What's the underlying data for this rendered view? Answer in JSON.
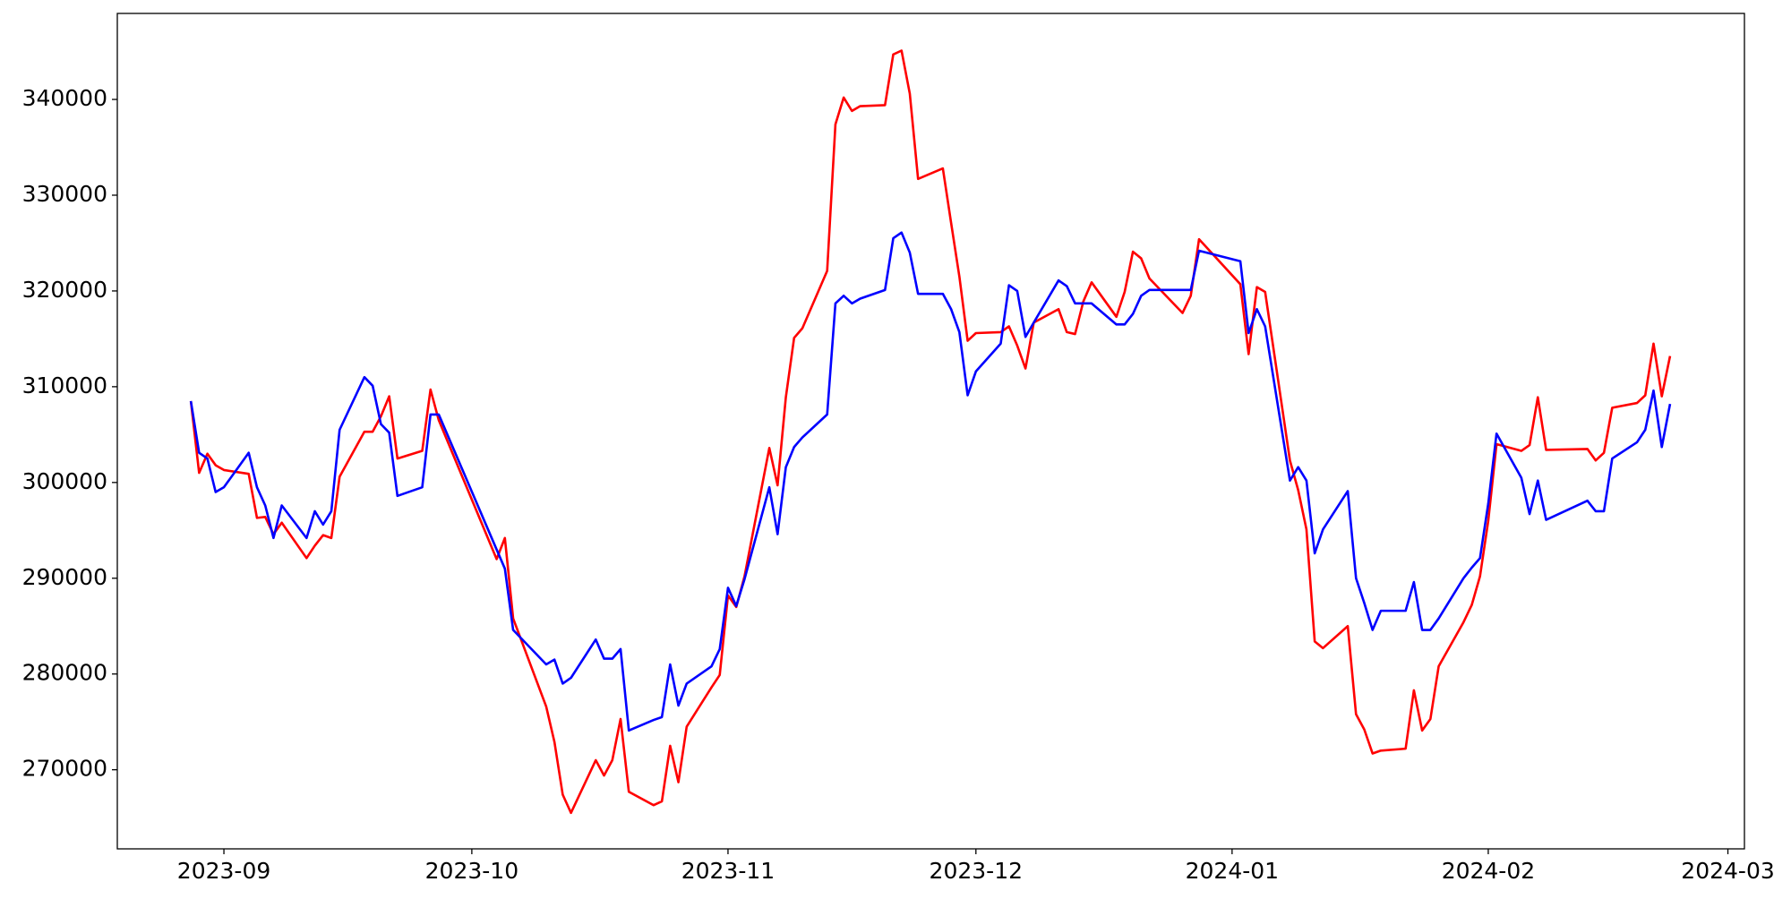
{
  "chart_data": {
    "type": "line",
    "x": [
      19597,
      19598,
      19599,
      19600,
      19601,
      19604,
      19605,
      19606,
      19607,
      19608,
      19611,
      19612,
      19613,
      19614,
      19615,
      19618,
      19619,
      19620,
      19621,
      19622,
      19625,
      19626,
      19627,
      19634,
      19635,
      19636,
      19640,
      19641,
      19642,
      19643,
      19646,
      19647,
      19648,
      19649,
      19650,
      19653,
      19654,
      19655,
      19656,
      19657,
      19660,
      19661,
      19662,
      19663,
      19664,
      19667,
      19668,
      19669,
      19670,
      19671,
      19674,
      19675,
      19676,
      19677,
      19678,
      19681,
      19682,
      19683,
      19684,
      19685,
      19688,
      19689,
      19690,
      19691,
      19692,
      19695,
      19696,
      19697,
      19698,
      19699,
      19702,
      19703,
      19704,
      19705,
      19706,
      19709,
      19710,
      19711,
      19712,
      19713,
      19717,
      19718,
      19719,
      19724,
      19725,
      19726,
      19727,
      19730,
      19731,
      19732,
      19733,
      19734,
      19737,
      19738,
      19739,
      19740,
      19741,
      19744,
      19745,
      19746,
      19747,
      19748,
      19751,
      19752,
      19753,
      19754,
      19755,
      19758,
      19759,
      19760,
      19761,
      19766,
      19767,
      19768,
      19769,
      19772,
      19773,
      19774,
      19775,
      19776
    ],
    "series": [
      {
        "color": "red",
        "values": [
          308500,
          301000,
          303000,
          301800,
          301300,
          300900,
          296300,
          296400,
          294600,
          295800,
          292100,
          293400,
          294500,
          294200,
          300600,
          305300,
          305300,
          306900,
          309000,
          302500,
          303300,
          309700,
          306500,
          292000,
          294200,
          285800,
          276600,
          272900,
          267400,
          265500,
          271000,
          269400,
          271000,
          275300,
          267700,
          266300,
          266700,
          272500,
          268700,
          274500,
          278600,
          279900,
          288200,
          287000,
          290200,
          303600,
          299700,
          308900,
          315100,
          316100,
          322100,
          337400,
          340200,
          338800,
          339300,
          339400,
          344700,
          345100,
          340600,
          331700,
          332800,
          327100,
          321500,
          314800,
          315600,
          315700,
          316300,
          314300,
          311900,
          316700,
          318100,
          315700,
          315500,
          318900,
          320900,
          317300,
          319900,
          324100,
          323400,
          321300,
          317700,
          319500,
          325400,
          320700,
          313400,
          320400,
          319900,
          302300,
          299200,
          295100,
          283400,
          282700,
          285000,
          275800,
          274200,
          271700,
          272000,
          272200,
          278300,
          274100,
          275300,
          280800,
          285400,
          287200,
          290200,
          296000,
          304000,
          303300,
          303900,
          308900,
          303400,
          303500,
          302300,
          303100,
          307800,
          308300,
          309100,
          314500,
          309000,
          313200
        ]
      },
      {
        "color": "blue",
        "values": [
          308500,
          303100,
          302500,
          299000,
          299500,
          303100,
          299500,
          297600,
          294200,
          297600,
          294200,
          297000,
          295600,
          297000,
          305500,
          311000,
          310100,
          306100,
          305200,
          298600,
          299500,
          307100,
          307100,
          293000,
          291000,
          284600,
          281000,
          281500,
          279000,
          279600,
          283600,
          281600,
          281600,
          282600,
          274100,
          275200,
          275500,
          281000,
          276700,
          279000,
          280800,
          282600,
          289000,
          287100,
          289900,
          299500,
          294600,
          301600,
          303700,
          304700,
          307100,
          318700,
          319500,
          318700,
          319200,
          320100,
          325500,
          326100,
          324000,
          319700,
          319700,
          318100,
          315700,
          309100,
          311600,
          314500,
          320600,
          320000,
          315200,
          316700,
          321100,
          320500,
          318700,
          318700,
          318700,
          316500,
          316500,
          317600,
          319500,
          320100,
          320100,
          320100,
          324200,
          323100,
          315600,
          318100,
          316300,
          300200,
          301600,
          300200,
          292600,
          295100,
          299100,
          290000,
          287400,
          284600,
          286600,
          286600,
          289600,
          284600,
          284600,
          285800,
          290000,
          291100,
          292100,
          297800,
          305100,
          300500,
          296700,
          300200,
          296100,
          298100,
          297000,
          297000,
          302500,
          304200,
          305500,
          309600,
          303700,
          308200
        ]
      }
    ],
    "xlim": [
      19588.1,
      19785.0
    ],
    "xticks": [
      {
        "value": 19601,
        "label": "2023-09"
      },
      {
        "value": 19631,
        "label": "2023-10"
      },
      {
        "value": 19662,
        "label": "2023-11"
      },
      {
        "value": 19692,
        "label": "2023-12"
      },
      {
        "value": 19723,
        "label": "2024-01"
      },
      {
        "value": 19754,
        "label": "2024-02"
      },
      {
        "value": 19783,
        "label": "2024-03"
      }
    ],
    "ylim": [
      261740,
      348980
    ],
    "yticks": [
      270000,
      280000,
      290000,
      300000,
      310000,
      320000,
      330000,
      340000
    ]
  }
}
